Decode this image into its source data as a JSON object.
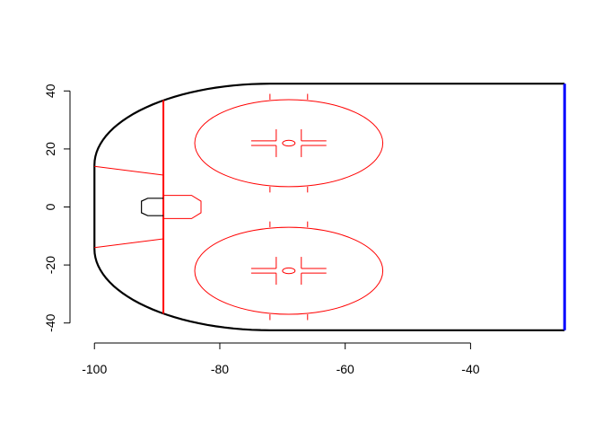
{
  "chart_data": {
    "type": "line",
    "title": "",
    "xlabel": "",
    "ylabel": "",
    "xlim": [
      -103.9,
      -24.6
    ],
    "ylim": [
      -46.9,
      46.9
    ],
    "grid": false,
    "x_ticks": [
      -100,
      -80,
      -60,
      -40
    ],
    "y_ticks": [
      -40,
      -20,
      0,
      20,
      40
    ],
    "x_tick_labels": [
      "-100",
      "-80",
      "-60",
      "-40"
    ],
    "y_tick_labels": [
      "-40",
      "-20",
      "0",
      "20",
      "40"
    ],
    "colors": {
      "boards": "#000000",
      "markings": "#ff0000",
      "center_line": "#0000ff"
    },
    "series": [
      {
        "role": "boards",
        "color": "#000000",
        "polyline": "boards",
        "params": {
          "x_end": -72,
          "corner_center_x": -72,
          "goal_line_x": -100,
          "half_width": 42.5,
          "corner_radius": 28,
          "center_x": -25
        }
      },
      {
        "role": "center-line",
        "color": "#0000ff",
        "x": [
          -25,
          -25
        ],
        "y": [
          -42.5,
          42.5
        ]
      },
      {
        "role": "goal-line",
        "color": "#ff0000",
        "x": [
          -89,
          -89
        ],
        "y": [
          -36.8,
          36.8
        ]
      },
      {
        "role": "trapezoid-top",
        "color": "#ff0000",
        "x": [
          -100,
          -89
        ],
        "y": [
          14,
          11
        ]
      },
      {
        "role": "trapezoid-bottom",
        "color": "#ff0000",
        "x": [
          -100,
          -89
        ],
        "y": [
          -14,
          -11
        ]
      },
      {
        "role": "crease",
        "color": "#ff0000",
        "x": [
          -89,
          -84.5,
          -83,
          -83,
          -84.5,
          -89
        ],
        "y": [
          4,
          4,
          2,
          -2,
          -4,
          -4
        ]
      },
      {
        "role": "net",
        "color": "#000000",
        "x": [
          -89,
          -91.5,
          -92.5,
          -92.5,
          -91.5,
          -89
        ],
        "y": [
          3,
          3,
          2,
          -2,
          -3,
          -3
        ]
      },
      {
        "role": "faceoff-circle-top",
        "color": "#ff0000",
        "center": [
          -69,
          22
        ],
        "radius": 15
      },
      {
        "role": "faceoff-circle-bottom",
        "color": "#ff0000",
        "center": [
          -69,
          -22
        ],
        "radius": 15
      },
      {
        "role": "faceoff-dot-top",
        "color": "#ff0000",
        "center": [
          -69,
          22
        ],
        "radius": 1
      },
      {
        "role": "faceoff-dot-bottom",
        "color": "#ff0000",
        "center": [
          -69,
          -22
        ],
        "radius": 1
      }
    ],
    "faceoff_details": {
      "centers": [
        [
          -69,
          22
        ],
        [
          -69,
          -22
        ]
      ],
      "hash_x": [
        -72,
        -66
      ],
      "hash_outer": 15,
      "hash_len": 2,
      "l_left_outer": -75,
      "l_left_inner": -71,
      "l_right_inner": -67,
      "l_right_outer": -63,
      "l_dy": 0.8,
      "l_vert": 4
    }
  }
}
